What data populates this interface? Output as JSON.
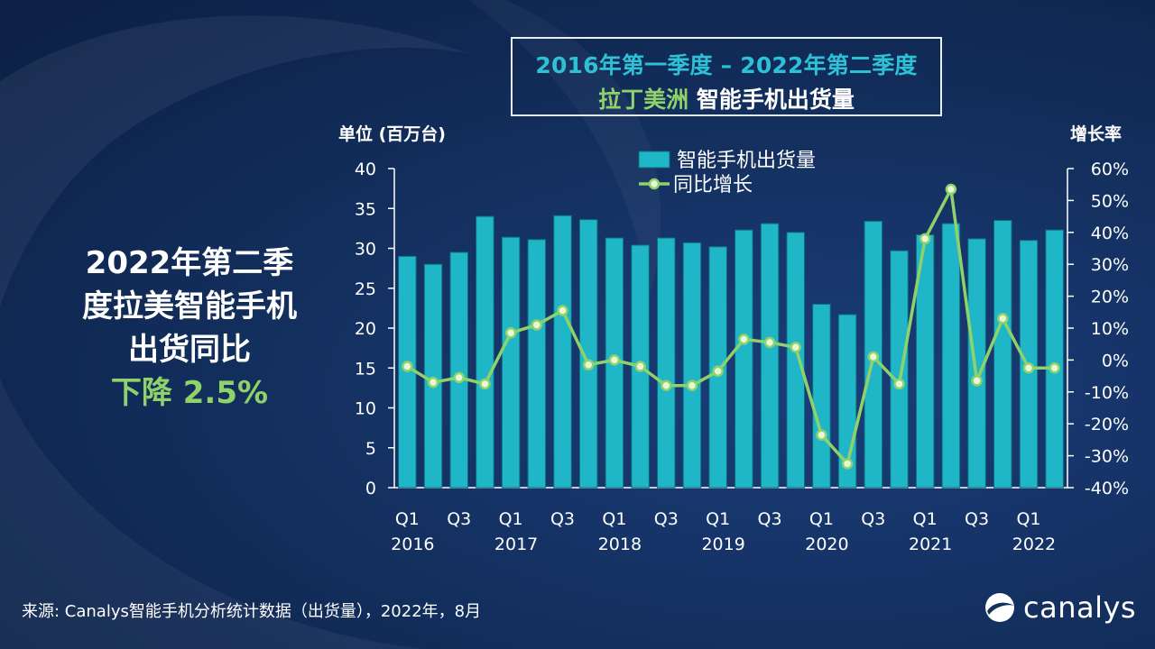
{
  "title": {
    "line1": "2016年第一季度 – 2022年第二季度",
    "line2_highlight": "拉丁美洲",
    "line2_rest": " 智能手机出货量"
  },
  "callout": {
    "line1": "2022年第二季",
    "line2": "度拉美智能手机",
    "line3": "出货同比",
    "line4": "下降 2.5%"
  },
  "source": "来源: Canalys智能手机分析统计数据（出货量），2022年，8月",
  "brand": {
    "name": "canalys"
  },
  "colors": {
    "bar": "#1fb7c7",
    "bar_edge": "#0d6f7a",
    "line": "#8fd16a",
    "marker_fill": "#e9f7d8",
    "highlight_green": "#8fd16a",
    "title_cyan": "#2ec0d6"
  },
  "chart_data": {
    "type": "bar",
    "left_axis_label": "单位 (百万台)",
    "right_axis_label": "增长率",
    "ylim": [
      0,
      40
    ],
    "yticks": [
      0,
      5,
      10,
      15,
      20,
      25,
      30,
      35,
      40
    ],
    "y2lim": [
      -40,
      60
    ],
    "y2ticks": [
      "60%",
      "50%",
      "40%",
      "30%",
      "20%",
      "10%",
      "0%",
      "-10%",
      "-20%",
      "-30%",
      "-40%"
    ],
    "x_labels": [
      {
        "quarter": "Q1",
        "year": "2016",
        "index": 0
      },
      {
        "quarter": "Q3",
        "year": "",
        "index": 2
      },
      {
        "quarter": "Q1",
        "year": "2017",
        "index": 4
      },
      {
        "quarter": "Q3",
        "year": "",
        "index": 6
      },
      {
        "quarter": "Q1",
        "year": "2018",
        "index": 8
      },
      {
        "quarter": "Q3",
        "year": "",
        "index": 10
      },
      {
        "quarter": "Q1",
        "year": "2019",
        "index": 12
      },
      {
        "quarter": "Q3",
        "year": "",
        "index": 14
      },
      {
        "quarter": "Q1",
        "year": "2020",
        "index": 16
      },
      {
        "quarter": "Q3",
        "year": "",
        "index": 18
      },
      {
        "quarter": "Q1",
        "year": "2021",
        "index": 20
      },
      {
        "quarter": "Q3",
        "year": "",
        "index": 22
      },
      {
        "quarter": "Q1",
        "year": "2022",
        "index": 24
      }
    ],
    "series": [
      {
        "name": "智能手机出货量",
        "type": "bar",
        "axis": "left",
        "values": [
          29.0,
          28.0,
          29.5,
          34.0,
          31.4,
          31.1,
          34.1,
          33.6,
          31.3,
          30.4,
          31.3,
          30.7,
          30.2,
          32.3,
          33.1,
          32.0,
          23.0,
          21.7,
          33.4,
          29.7,
          31.7,
          33.1,
          31.2,
          33.5,
          31.0,
          32.3
        ]
      },
      {
        "name": "同比增长",
        "type": "line",
        "axis": "right",
        "values": [
          -2.0,
          -7.0,
          -5.5,
          -7.5,
          8.5,
          11.0,
          15.5,
          -1.5,
          0.0,
          -2.0,
          -8.0,
          -8.0,
          -3.5,
          6.5,
          5.5,
          4.0,
          -23.5,
          -32.5,
          1.0,
          -7.5,
          38.0,
          53.5,
          -6.5,
          13.0,
          -2.5,
          -2.5
        ]
      }
    ]
  }
}
